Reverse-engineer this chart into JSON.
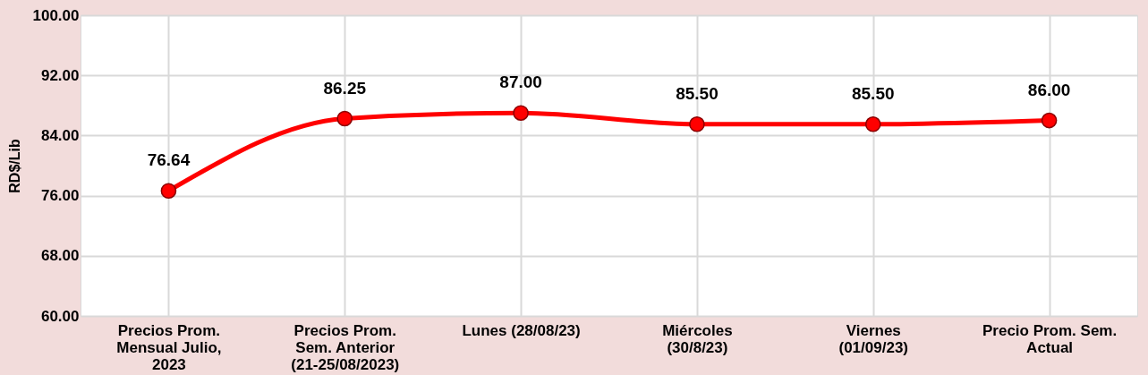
{
  "chart_data": {
    "type": "line",
    "ylabel": "RD$/Lib",
    "categories": [
      "Precios Prom.\nMensual Julio,\n2023",
      "Precios Prom.\nSem. Anterior\n(21-25/08/2023)",
      "Lunes  (28/08/23)",
      "Miércoles\n(30/8/23)",
      "Viernes\n(01/09/23)",
      "Precio Prom. Sem.\nActual"
    ],
    "series": [
      {
        "color": "#ff0000",
        "values": [
          76.64,
          86.25,
          87.0,
          85.5,
          85.5,
          86.0
        ],
        "value_labels": [
          "76.64",
          "86.25",
          "87.00",
          "85.50",
          "85.50",
          "86.00"
        ]
      }
    ],
    "ylim": [
      60,
      100
    ],
    "yticks": [
      {
        "value": 60,
        "label": "60.00"
      },
      {
        "value": 68,
        "label": "68.00"
      },
      {
        "value": 76,
        "label": "76.00"
      },
      {
        "value": 84,
        "label": "84.00"
      },
      {
        "value": 92,
        "label": "92.00"
      },
      {
        "value": 100,
        "label": "100.00"
      }
    ],
    "grid": true,
    "marker": "circle"
  }
}
